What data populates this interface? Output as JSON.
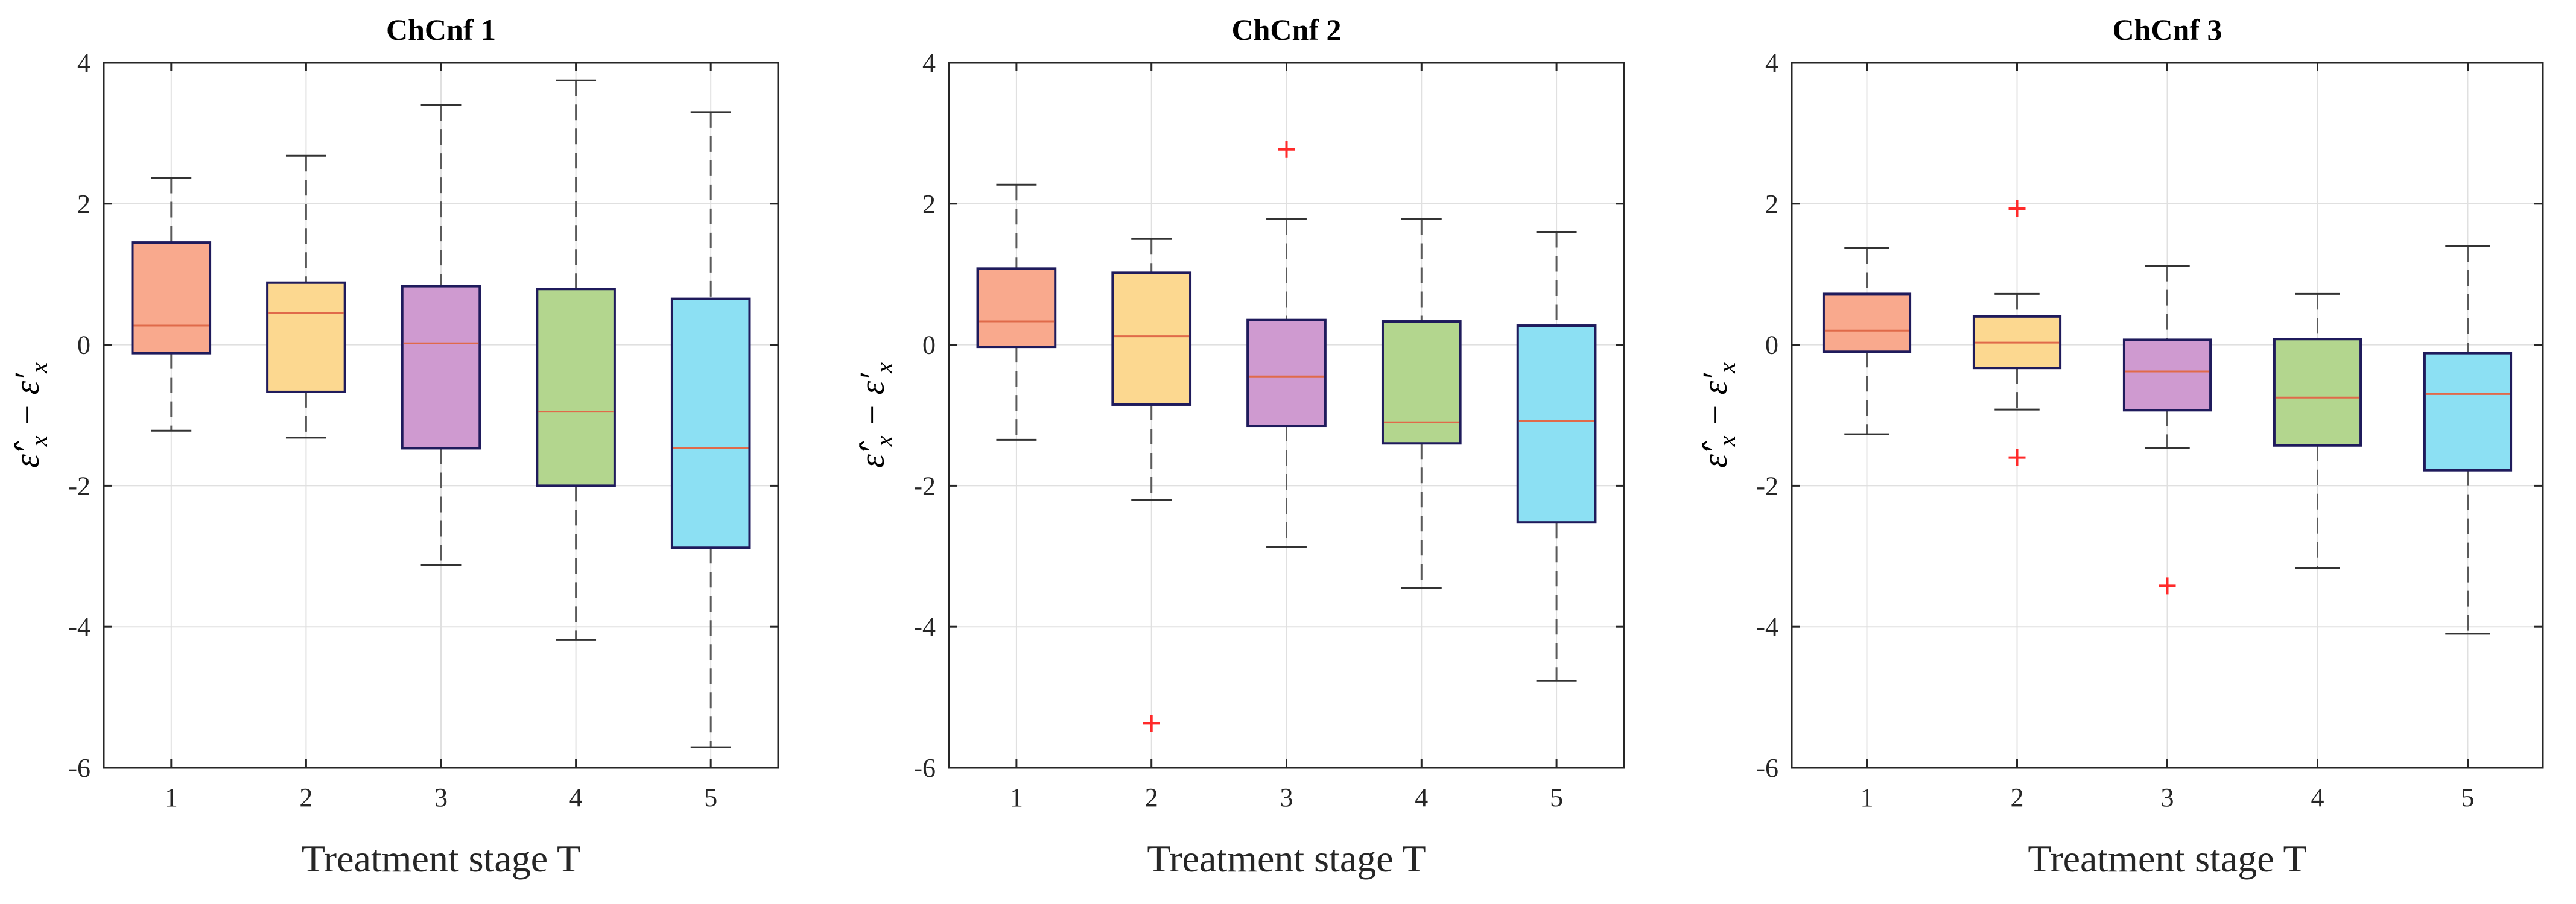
{
  "chart_data": [
    {
      "type": "box",
      "title": "ChCnf 1",
      "xlabel": "Treatment stage T",
      "ylabel_main": "ε̂′",
      "ylabel_sub1": "x",
      "ylabel_mid": " − ε′",
      "ylabel_sub2": "x",
      "ylim": [
        -6,
        4
      ],
      "yticks": [
        4,
        2,
        0,
        -2,
        -4,
        -6
      ],
      "categories": [
        "1",
        "2",
        "3",
        "4",
        "5"
      ],
      "colors": [
        "#f9a98d",
        "#fcd890",
        "#cf9ad0",
        "#b3d68e",
        "#8ce0f3"
      ],
      "boxes": [
        {
          "stage": "1",
          "whisker_low": -1.22,
          "q1": -0.12,
          "median": 0.27,
          "q3": 1.45,
          "whisker_high": 2.37,
          "outliers": []
        },
        {
          "stage": "2",
          "whisker_low": -1.32,
          "q1": -0.67,
          "median": 0.45,
          "q3": 0.88,
          "whisker_high": 2.68,
          "outliers": []
        },
        {
          "stage": "3",
          "whisker_low": -3.13,
          "q1": -1.47,
          "median": 0.02,
          "q3": 0.83,
          "whisker_high": 3.4,
          "outliers": []
        },
        {
          "stage": "4",
          "whisker_low": -4.19,
          "q1": -2.0,
          "median": -0.95,
          "q3": 0.79,
          "whisker_high": 3.75,
          "outliers": []
        },
        {
          "stage": "5",
          "whisker_low": -5.71,
          "q1": -2.88,
          "median": -1.47,
          "q3": 0.65,
          "whisker_high": 3.3,
          "outliers": []
        }
      ]
    },
    {
      "type": "box",
      "title": "ChCnf 2",
      "xlabel": "Treatment stage T",
      "ylabel_main": "ε̂′",
      "ylabel_sub1": "x",
      "ylabel_mid": " − ε′",
      "ylabel_sub2": "x",
      "ylim": [
        -6,
        4
      ],
      "yticks": [
        4,
        2,
        0,
        -2,
        -4,
        -6
      ],
      "categories": [
        "1",
        "2",
        "3",
        "4",
        "5"
      ],
      "colors": [
        "#f9a98d",
        "#fcd890",
        "#cf9ad0",
        "#b3d68e",
        "#8ce0f3"
      ],
      "boxes": [
        {
          "stage": "1",
          "whisker_low": -1.35,
          "q1": -0.03,
          "median": 0.33,
          "q3": 1.08,
          "whisker_high": 2.27,
          "outliers": []
        },
        {
          "stage": "2",
          "whisker_low": -2.2,
          "q1": -0.85,
          "median": 0.12,
          "q3": 1.02,
          "whisker_high": 1.5,
          "outliers": [
            -5.37
          ]
        },
        {
          "stage": "3",
          "whisker_low": -2.87,
          "q1": -1.15,
          "median": -0.45,
          "q3": 0.35,
          "whisker_high": 1.78,
          "outliers": [
            2.77
          ]
        },
        {
          "stage": "4",
          "whisker_low": -3.45,
          "q1": -1.4,
          "median": -1.1,
          "q3": 0.33,
          "whisker_high": 1.78,
          "outliers": []
        },
        {
          "stage": "5",
          "whisker_low": -4.77,
          "q1": -2.52,
          "median": -1.08,
          "q3": 0.27,
          "whisker_high": 1.6,
          "outliers": []
        }
      ]
    },
    {
      "type": "box",
      "title": "ChCnf 3",
      "xlabel": "Treatment stage T",
      "ylabel_main": "ε̂′",
      "ylabel_sub1": "x",
      "ylabel_mid": " − ε′",
      "ylabel_sub2": "x",
      "ylim": [
        -6,
        4
      ],
      "yticks": [
        4,
        2,
        0,
        -2,
        -4,
        -6
      ],
      "categories": [
        "1",
        "2",
        "3",
        "4",
        "5"
      ],
      "colors": [
        "#f9a98d",
        "#fcd890",
        "#cf9ad0",
        "#b3d68e",
        "#8ce0f3"
      ],
      "boxes": [
        {
          "stage": "1",
          "whisker_low": -1.27,
          "q1": -0.1,
          "median": 0.2,
          "q3": 0.72,
          "whisker_high": 1.37,
          "outliers": []
        },
        {
          "stage": "2",
          "whisker_low": -0.92,
          "q1": -0.33,
          "median": 0.03,
          "q3": 0.4,
          "whisker_high": 0.72,
          "outliers": [
            1.93,
            -1.6
          ]
        },
        {
          "stage": "3",
          "whisker_low": -1.47,
          "q1": -0.93,
          "median": -0.38,
          "q3": 0.07,
          "whisker_high": 1.12,
          "outliers": [
            -3.42
          ]
        },
        {
          "stage": "4",
          "whisker_low": -3.17,
          "q1": -1.43,
          "median": -0.75,
          "q3": 0.08,
          "whisker_high": 0.72,
          "outliers": []
        },
        {
          "stage": "5",
          "whisker_low": -4.1,
          "q1": -1.78,
          "median": -0.7,
          "q3": -0.12,
          "whisker_high": 1.4,
          "outliers": []
        }
      ]
    }
  ],
  "style": {
    "box_edge": "#1f1b5c",
    "median": "#e06a4a",
    "whisker": "#5a5a5a",
    "outlier": "#ff2a2a",
    "grid": "#e0e0e0",
    "axis": "#262626"
  }
}
